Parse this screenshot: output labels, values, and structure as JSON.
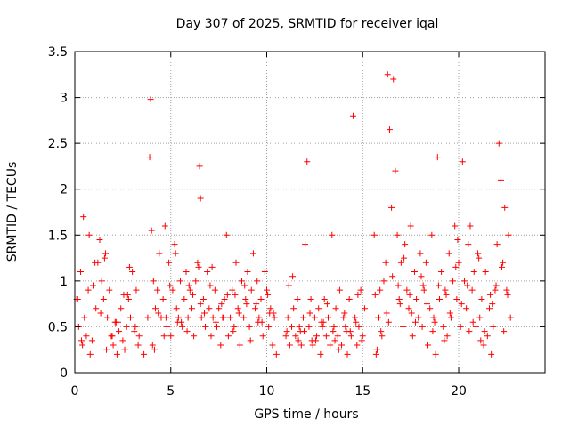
{
  "chart_data": {
    "type": "scatter",
    "title": "Day 307 of 2025, SRMTID for receiver iqal",
    "xlabel": "GPS time / hours",
    "ylabel": "SRMTID / TECUs",
    "xlim": [
      0,
      24.5
    ],
    "ylim": [
      0,
      3.5
    ],
    "x_ticks": [
      0,
      5,
      10,
      15,
      20
    ],
    "x_tick_labels": [
      "0",
      "5",
      "10",
      "15",
      "20"
    ],
    "y_ticks": [
      0,
      0.5,
      1,
      1.5,
      2,
      2.5,
      3,
      3.5
    ],
    "y_tick_labels": [
      "0",
      "0.5",
      "1",
      "1.5",
      "2",
      "2.5",
      "3",
      "3.5"
    ],
    "grid": true,
    "marker": "plus",
    "color": "#ff0000",
    "points_x": [
      0.1,
      0.2,
      0.3,
      0.4,
      0.5,
      0.6,
      0.7,
      0.8,
      0.9,
      1.0,
      1.1,
      1.2,
      1.3,
      1.4,
      1.5,
      1.6,
      1.7,
      1.8,
      1.9,
      2.0,
      2.1,
      2.2,
      2.3,
      2.4,
      2.5,
      2.6,
      2.7,
      2.8,
      2.9,
      3.0,
      3.1,
      3.2,
      3.3,
      3.6,
      3.8,
      3.9,
      3.95,
      4.0,
      4.1,
      4.2,
      4.3,
      4.4,
      4.5,
      4.6,
      4.7,
      4.8,
      4.9,
      5.0,
      5.1,
      5.2,
      5.3,
      5.4,
      5.5,
      5.6,
      5.7,
      5.8,
      5.9,
      6.0,
      6.1,
      6.2,
      6.3,
      6.4,
      6.5,
      6.55,
      6.6,
      6.7,
      6.8,
      6.9,
      7.0,
      7.1,
      7.2,
      7.3,
      7.4,
      7.5,
      7.6,
      7.7,
      7.8,
      7.9,
      8.0,
      8.1,
      8.2,
      8.3,
      8.4,
      8.5,
      8.6,
      8.7,
      8.8,
      8.9,
      9.0,
      9.1,
      9.2,
      9.3,
      9.4,
      9.5,
      9.6,
      9.7,
      9.8,
      9.9,
      10.0,
      10.1,
      10.2,
      10.3,
      10.4,
      10.5,
      11.0,
      11.1,
      11.2,
      11.3,
      11.4,
      11.5,
      11.6,
      11.7,
      11.8,
      11.9,
      12.0,
      12.1,
      12.2,
      12.3,
      12.4,
      12.5,
      12.6,
      12.7,
      12.8,
      12.9,
      13.0,
      13.1,
      13.2,
      13.3,
      13.4,
      13.5,
      13.6,
      13.7,
      13.8,
      13.9,
      14.0,
      14.1,
      14.2,
      14.3,
      14.4,
      14.5,
      14.6,
      14.7,
      14.8,
      14.9,
      15.0,
      15.1,
      15.6,
      15.7,
      15.8,
      15.9,
      16.0,
      16.1,
      16.2,
      16.3,
      16.4,
      16.5,
      16.6,
      16.7,
      16.8,
      16.9,
      17.0,
      17.1,
      17.2,
      17.3,
      17.4,
      17.5,
      17.6,
      17.7,
      17.8,
      17.9,
      18.0,
      18.1,
      18.2,
      18.3,
      18.4,
      18.5,
      18.6,
      18.7,
      18.8,
      18.9,
      19.0,
      19.1,
      19.2,
      19.3,
      19.4,
      19.5,
      19.6,
      19.7,
      19.8,
      19.9,
      20.0,
      20.1,
      20.2,
      20.3,
      20.4,
      20.5,
      20.6,
      20.7,
      20.8,
      20.9,
      21.0,
      21.1,
      21.2,
      21.3,
      21.4,
      21.5,
      21.6,
      21.7,
      21.8,
      21.9,
      22.0,
      22.1,
      22.2,
      22.3,
      22.4,
      22.5,
      22.6,
      22.7,
      0.15,
      0.45,
      0.75,
      1.05,
      1.35,
      1.65,
      1.95,
      2.25,
      2.55,
      2.85,
      3.15,
      4.05,
      4.35,
      4.65,
      4.95,
      5.25,
      5.55,
      5.85,
      6.15,
      6.45,
      6.75,
      7.05,
      7.35,
      7.65,
      7.95,
      8.25,
      8.55,
      8.85,
      9.15,
      9.45,
      9.75,
      10.05,
      10.35,
      11.05,
      11.35,
      11.65,
      11.95,
      12.25,
      12.55,
      12.85,
      13.15,
      13.45,
      13.75,
      14.05,
      14.35,
      14.65,
      14.95,
      15.65,
      15.95,
      16.25,
      16.55,
      16.85,
      17.15,
      17.45,
      17.75,
      18.05,
      18.35,
      18.65,
      18.95,
      19.25,
      19.55,
      19.85,
      20.15,
      20.45,
      20.75,
      21.05,
      21.35,
      21.65,
      21.95,
      22.25,
      22.55,
      0.35,
      0.95,
      1.55,
      2.15,
      2.75,
      3.35,
      4.15,
      4.75,
      5.35,
      5.95,
      6.55,
      7.15,
      7.75,
      8.35,
      8.95,
      9.55,
      10.15,
      11.15,
      11.75,
      12.35,
      12.95,
      13.55,
      14.15,
      14.75,
      15.75,
      16.35,
      16.95,
      17.55,
      18.15,
      18.75,
      19.35,
      19.95,
      20.55,
      21.15,
      21.75,
      22.35
    ],
    "points_y": [
      0.8,
      0.5,
      1.1,
      0.3,
      0.6,
      0.4,
      0.9,
      0.2,
      0.35,
      0.15,
      0.7,
      1.2,
      1.45,
      1.0,
      0.8,
      1.3,
      0.6,
      0.9,
      0.4,
      0.3,
      0.55,
      0.2,
      0.45,
      0.7,
      0.35,
      0.25,
      0.5,
      0.8,
      0.6,
      1.1,
      0.45,
      0.9,
      0.3,
      0.2,
      0.6,
      2.35,
      2.98,
      1.55,
      1.0,
      0.7,
      0.9,
      1.3,
      0.6,
      0.8,
      1.6,
      0.5,
      1.2,
      0.4,
      0.9,
      1.4,
      0.7,
      0.6,
      1.0,
      0.5,
      0.8,
      1.1,
      0.6,
      0.9,
      0.7,
      0.4,
      1.0,
      1.2,
      2.25,
      1.9,
      0.6,
      0.8,
      0.5,
      1.1,
      0.7,
      0.4,
      0.6,
      0.9,
      0.5,
      0.7,
      0.3,
      0.6,
      0.8,
      1.5,
      0.4,
      0.6,
      0.9,
      0.5,
      1.2,
      0.7,
      0.3,
      1.0,
      0.6,
      0.8,
      1.1,
      0.5,
      0.9,
      1.3,
      0.7,
      1.0,
      0.6,
      0.8,
      0.4,
      1.1,
      0.9,
      0.5,
      0.7,
      0.3,
      0.6,
      0.2,
      0.4,
      0.6,
      0.3,
      0.5,
      0.7,
      0.4,
      0.8,
      0.5,
      0.3,
      0.6,
      1.4,
      2.3,
      0.5,
      0.8,
      0.3,
      0.6,
      0.4,
      0.7,
      0.2,
      0.5,
      0.8,
      0.4,
      0.6,
      0.3,
      1.5,
      0.5,
      0.7,
      0.4,
      0.9,
      0.3,
      0.6,
      0.5,
      0.2,
      0.8,
      0.4,
      2.8,
      0.6,
      0.3,
      0.5,
      0.9,
      0.4,
      0.7,
      1.5,
      0.2,
      0.6,
      0.9,
      0.4,
      1.0,
      1.2,
      3.25,
      2.65,
      1.8,
      3.2,
      2.2,
      1.5,
      0.8,
      1.2,
      0.5,
      1.4,
      0.9,
      0.7,
      1.6,
      0.4,
      1.1,
      0.8,
      0.6,
      1.3,
      0.5,
      0.9,
      1.2,
      0.3,
      0.7,
      1.5,
      0.6,
      0.2,
      2.35,
      0.8,
      1.1,
      0.5,
      0.9,
      0.4,
      1.3,
      0.6,
      1.0,
      1.6,
      0.8,
      1.2,
      0.5,
      2.3,
      1.0,
      0.7,
      1.4,
      1.6,
      0.9,
      1.1,
      0.5,
      1.3,
      0.6,
      0.8,
      0.3,
      1.1,
      0.4,
      0.7,
      0.2,
      0.5,
      0.9,
      1.4,
      2.5,
      2.1,
      1.2,
      1.8,
      0.9,
      1.5,
      0.6,
      0.8,
      1.7,
      1.5,
      1.2,
      0.65,
      0.25,
      0.4,
      0.55,
      0.85,
      1.15,
      0.5,
      0.3,
      0.65,
      0.4,
      0.95,
      1.3,
      0.55,
      0.45,
      0.85,
      1.15,
      0.65,
      0.95,
      0.55,
      0.75,
      0.85,
      0.45,
      0.65,
      0.95,
      0.35,
      0.75,
      0.55,
      0.85,
      0.65,
      0.45,
      1.05,
      0.35,
      0.45,
      0.65,
      0.35,
      0.55,
      0.75,
      0.45,
      0.25,
      0.65,
      0.45,
      0.55,
      0.35,
      0.85,
      0.45,
      0.65,
      1.05,
      0.95,
      1.25,
      0.85,
      0.55,
      1.05,
      0.75,
      0.45,
      0.95,
      0.35,
      0.65,
      1.15,
      0.75,
      0.95,
      0.55,
      1.25,
      0.45,
      0.85,
      0.95,
      1.15,
      0.85,
      0.35,
      0.95,
      1.25,
      0.55,
      0.85,
      0.4,
      0.25,
      0.6,
      0.55,
      0.95,
      0.75,
      1.15,
      0.6,
      0.85,
      0.75,
      0.55,
      0.65,
      0.95,
      0.45,
      0.35,
      0.55,
      0.35,
      0.45,
      0.85,
      0.25,
      0.55,
      0.75,
      0.65,
      0.95,
      0.55,
      0.85,
      1.45,
      0.45,
      0.35,
      0.75,
      0.45
    ]
  }
}
